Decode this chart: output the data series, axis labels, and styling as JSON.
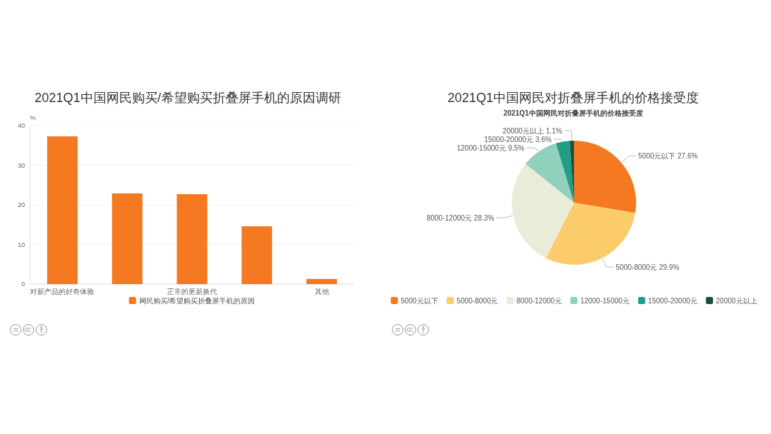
{
  "chart_data": [
    {
      "type": "bar",
      "title": "2021Q1中国网民购买/希望购买折叠屏手机的原因调研",
      "ylabel": "%",
      "categories": [
        "对新产品的好奇体验",
        null,
        "正常的更新换代",
        null,
        "其他"
      ],
      "series": [
        {
          "name": "网民购买/希望购买折叠屏手机的原因",
          "color": "#f47920",
          "values": [
            37.3,
            22.9,
            22.7,
            14.6,
            1.3
          ]
        }
      ],
      "ylim": [
        0,
        40
      ],
      "yticks": [
        0,
        10,
        20,
        30,
        40
      ],
      "grid": "y",
      "legend": "bottom"
    },
    {
      "type": "pie",
      "title": "2021Q1中国网民对折叠屏手机的价格接受度",
      "subtitle": "2021Q1中国网民对折叠屏手机的价格接受度",
      "categories": [
        "5000元以下",
        "5000-8000元",
        "8000-12000元",
        "12000-15000元",
        "15000-20000元",
        "20000元以上"
      ],
      "values": [
        27.6,
        29.9,
        28.3,
        9.5,
        3.6,
        1.1
      ],
      "value_labels": [
        "27.6%",
        "29.9%",
        "28.3%",
        "9.5%",
        "3.6%",
        "1.1%"
      ],
      "colors": [
        "#f47920",
        "#fccb6b",
        "#e8ecd8",
        "#90d0bc",
        "#1f9e85",
        "#1d4d3f"
      ],
      "legend": "bottom"
    }
  ]
}
